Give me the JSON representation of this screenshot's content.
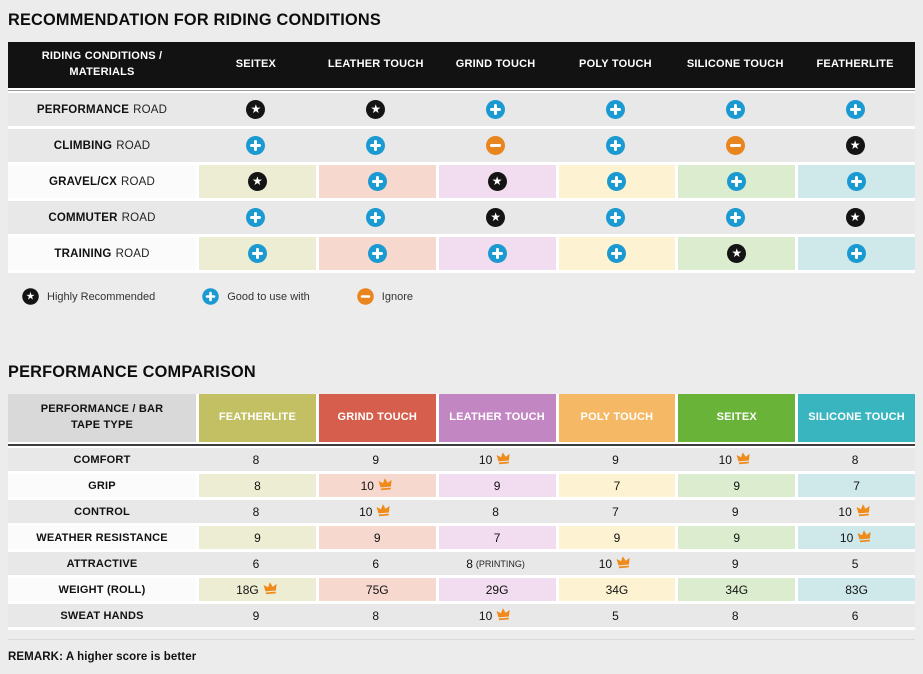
{
  "glyphs": {
    "star": "★"
  },
  "colors": {
    "page_bg": "#ececec",
    "star_icon": "#141414",
    "plus_icon": "#1b9ad2",
    "minus_icon": "#e9851f",
    "crown_icon": "#ef8a1b",
    "gray_row": "#e8e8e8",
    "tints": [
      "#ededd3",
      "#f6d8cf",
      "#f2dcef",
      "#fdf3d2",
      "#dcedcf",
      "#cfe8ea"
    ],
    "header2": [
      "#d9d9d9",
      "#c3bf63",
      "#d55f4c",
      "#c287c3",
      "#f5b966",
      "#69b438",
      "#39b5bf"
    ]
  },
  "table1": {
    "title": "RECOMMENDATION FOR RIDING CONDITIONS",
    "headers": [
      "RIDING CONDITIONS / MATERIALS",
      "SEITEX",
      "LEATHER TOUCH",
      "GRIND TOUCH",
      "POLY TOUCH",
      "SILICONE TOUCH",
      "FEATHERLITE"
    ],
    "rows": [
      {
        "label_bold": "PERFORMANCE",
        "label_rest": "ROAD",
        "tinted": false,
        "cells": [
          "star",
          "star",
          "plus",
          "plus",
          "plus",
          "plus"
        ]
      },
      {
        "label_bold": "CLIMBING",
        "label_rest": "ROAD",
        "tinted": false,
        "cells": [
          "plus",
          "plus",
          "minus",
          "plus",
          "minus",
          "star"
        ]
      },
      {
        "label_bold": "GRAVEL/CX",
        "label_rest": "ROAD",
        "tinted": true,
        "cells": [
          "star",
          "plus",
          "star",
          "plus",
          "plus",
          "plus"
        ]
      },
      {
        "label_bold": "COMMUTER",
        "label_rest": "ROAD",
        "tinted": false,
        "cells": [
          "plus",
          "plus",
          "star",
          "plus",
          "plus",
          "star"
        ]
      },
      {
        "label_bold": "TRAINING",
        "label_rest": "ROAD",
        "tinted": true,
        "cells": [
          "plus",
          "plus",
          "plus",
          "plus",
          "star",
          "plus"
        ]
      }
    ],
    "legend": [
      {
        "icon": "star",
        "label": "Highly Recommended"
      },
      {
        "icon": "plus",
        "label": "Good to use with"
      },
      {
        "icon": "minus",
        "label": "Ignore"
      }
    ]
  },
  "table2": {
    "title": "PERFORMANCE COMPARISON",
    "headers": [
      "PERFORMANCE / BAR TAPE TYPE",
      "FEATHERLITE",
      "GRIND TOUCH",
      "LEATHER TOUCH",
      "POLY TOUCH",
      "SEITEX",
      "SILICONE TOUCH"
    ],
    "rows": [
      {
        "label": "COMFORT",
        "tinted": false,
        "cells": [
          {
            "v": "8"
          },
          {
            "v": "9"
          },
          {
            "v": "10",
            "crown": true
          },
          {
            "v": "9"
          },
          {
            "v": "10",
            "crown": true
          },
          {
            "v": "8"
          }
        ]
      },
      {
        "label": "GRIP",
        "tinted": true,
        "cells": [
          {
            "v": "8"
          },
          {
            "v": "10",
            "crown": true
          },
          {
            "v": "9"
          },
          {
            "v": "7"
          },
          {
            "v": "9"
          },
          {
            "v": "7"
          }
        ]
      },
      {
        "label": "CONTROL",
        "tinted": false,
        "cells": [
          {
            "v": "8"
          },
          {
            "v": "10",
            "crown": true
          },
          {
            "v": "8"
          },
          {
            "v": "7"
          },
          {
            "v": "9"
          },
          {
            "v": "10",
            "crown": true
          }
        ]
      },
      {
        "label": "WEATHER RESISTANCE",
        "tinted": true,
        "cells": [
          {
            "v": "9"
          },
          {
            "v": "9"
          },
          {
            "v": "7"
          },
          {
            "v": "9"
          },
          {
            "v": "9"
          },
          {
            "v": "10",
            "crown": true
          }
        ]
      },
      {
        "label": "ATTRACTIVE",
        "tinted": false,
        "cells": [
          {
            "v": "6"
          },
          {
            "v": "6"
          },
          {
            "v": "8",
            "note": "(PRINTING)"
          },
          {
            "v": "10",
            "crown": true
          },
          {
            "v": "9"
          },
          {
            "v": "5"
          }
        ]
      },
      {
        "label": "WEIGHT (ROLL)",
        "tinted": true,
        "cells": [
          {
            "v": "18G",
            "crown": true
          },
          {
            "v": "75G"
          },
          {
            "v": "29G"
          },
          {
            "v": "34G"
          },
          {
            "v": "34G"
          },
          {
            "v": "83G"
          }
        ]
      },
      {
        "label": "SWEAT HANDS",
        "tinted": false,
        "cells": [
          {
            "v": "9"
          },
          {
            "v": "8"
          },
          {
            "v": "10",
            "crown": true
          },
          {
            "v": "5"
          },
          {
            "v": "8"
          },
          {
            "v": "6"
          }
        ]
      }
    ],
    "remark": "REMARK: A higher score is better"
  }
}
